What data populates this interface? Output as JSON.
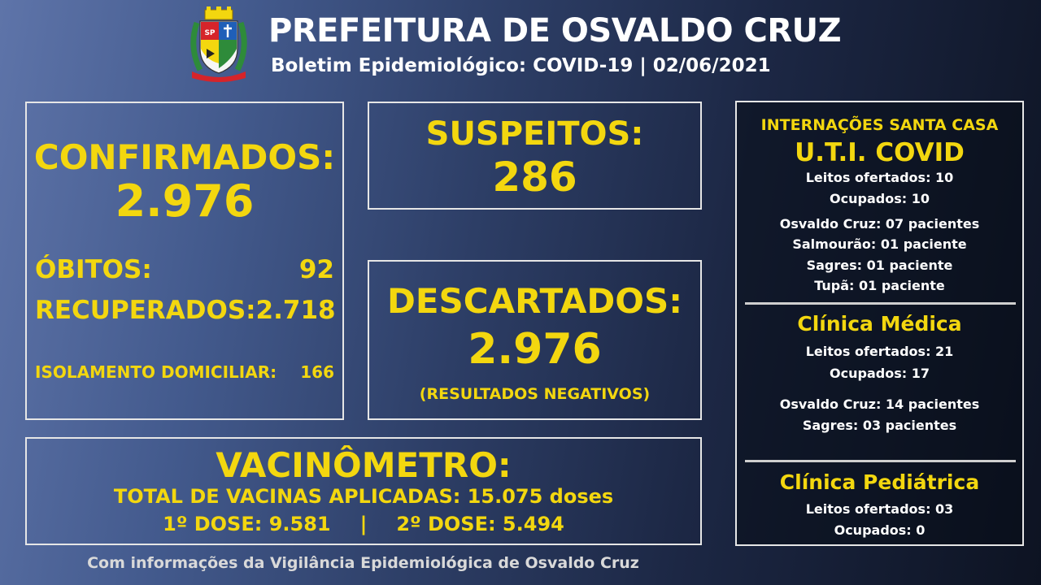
{
  "header": {
    "title": "PREFEITURA DE OSVALDO CRUZ",
    "subtitle": "Boletim Epidemiológico: COVID-19 | 02/06/2021",
    "crest": "municipal-coat-of-arms"
  },
  "colors": {
    "accent": "#f3d70f",
    "text": "#ffffff",
    "border": "#e6e6e6"
  },
  "confirmados": {
    "label": "CONFIRMADOS:",
    "value": "2.976",
    "obitos_label": "ÓBITOS:",
    "obitos_value": "92",
    "recuperados_label": "RECUPERADOS:",
    "recuperados_value": "2.718",
    "isolamento_label": "ISOLAMENTO DOMICILIAR:",
    "isolamento_value": "166"
  },
  "suspeitos": {
    "label": "SUSPEITOS:",
    "value": "286"
  },
  "descartados": {
    "label": "DESCARTADOS:",
    "value": "2.976",
    "note": "(RESULTADOS NEGATIVOS)"
  },
  "vacinometro": {
    "label": "VACINÔMETRO:",
    "total": "TOTAL DE VACINAS APLICADAS: 15.075 doses",
    "dose1": "1º DOSE: 9.581",
    "separator": "|",
    "dose2": "2º DOSE: 5.494"
  },
  "internacoes": {
    "title": "INTERNAÇÕES SANTA CASA",
    "uti": {
      "label": "U.T.I. COVID",
      "leitos": "Leitos ofertados: 10",
      "ocupados": "Ocupados: 10",
      "patients": [
        "Osvaldo Cruz: 07 pacientes",
        "Salmourão: 01 paciente",
        "Sagres: 01 paciente",
        "Tupã: 01 paciente"
      ]
    },
    "clinica_medica": {
      "label": "Clínica Médica",
      "leitos": "Leitos ofertados: 21",
      "ocupados": "Ocupados: 17",
      "patients": [
        "Osvaldo Cruz: 14 pacientes",
        "Sagres: 03 pacientes"
      ]
    },
    "clinica_pediatrica": {
      "label": "Clínica Pediátrica",
      "leitos": "Leitos ofertados: 03",
      "ocupados": "Ocupados: 0"
    }
  },
  "footer": {
    "text": "Com informações da Vigilância Epidemiológica de Osvaldo Cruz"
  }
}
